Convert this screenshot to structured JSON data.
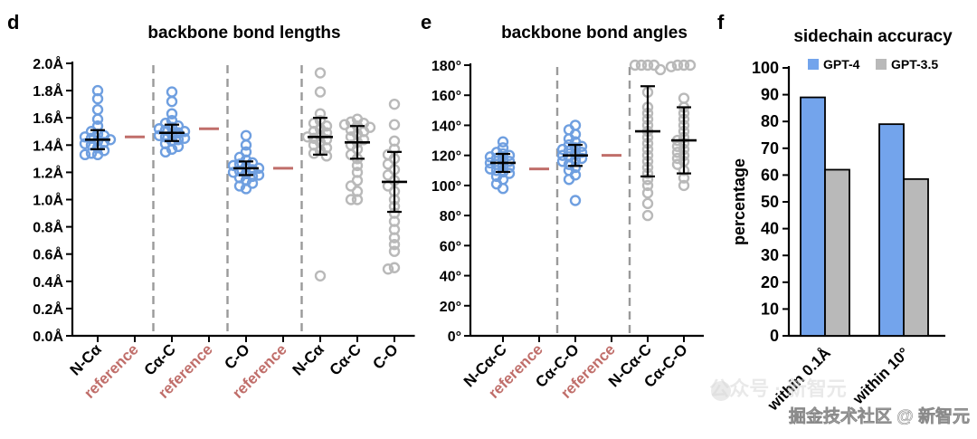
{
  "colors": {
    "blue": "#6f9fe0",
    "gray": "#b9b9b9",
    "reference": "#c06e6a",
    "errorbar": "#000000",
    "divider": "#9a9a9a",
    "bar_blue": "#73a4ec",
    "bar_gray": "#b9b9b9"
  },
  "watermark": {
    "text": "掘金技术社区 @ 新智元",
    "behind_text": "公众号 · 新智元"
  },
  "chart_data": [
    {
      "id": "d",
      "panel_label": "d",
      "type": "scatter",
      "title": "backbone bond lengths",
      "ylim": [
        0,
        2.0
      ],
      "yticks": [
        "0.0Å",
        "0.2Å",
        "0.4Å",
        "0.6Å",
        "0.8Å",
        "1.0Å",
        "1.2Å",
        "1.4Å",
        "1.6Å",
        "1.8Å",
        "2.0Å"
      ],
      "categories": [
        "N-Cα",
        "reference",
        "Cα-C",
        "reference",
        "C-O",
        "reference",
        "N-Cα",
        "Cα-C",
        "C-O"
      ],
      "category_kinds": [
        "blue",
        "ref",
        "blue",
        "ref",
        "blue",
        "ref",
        "gray",
        "gray",
        "gray"
      ],
      "dividers_after": [
        1,
        3,
        5
      ],
      "series": [
        {
          "category": "N-Cα",
          "kind": "blue",
          "mean": 1.44,
          "sd_low": 1.37,
          "sd_high": 1.51,
          "points": [
            1.8,
            1.74,
            1.66,
            1.59,
            1.54,
            1.5,
            1.48,
            1.47,
            1.46,
            1.45,
            1.44,
            1.43,
            1.42,
            1.41,
            1.4,
            1.38,
            1.36,
            1.34,
            1.33,
            1.33
          ]
        },
        {
          "category": "reference",
          "kind": "ref",
          "value": 1.46
        },
        {
          "category": "Cα-C",
          "kind": "blue",
          "mean": 1.49,
          "sd_low": 1.43,
          "sd_high": 1.55,
          "points": [
            1.79,
            1.72,
            1.63,
            1.58,
            1.56,
            1.54,
            1.53,
            1.52,
            1.51,
            1.5,
            1.49,
            1.48,
            1.47,
            1.46,
            1.45,
            1.44,
            1.43,
            1.41,
            1.39,
            1.37,
            1.35
          ]
        },
        {
          "category": "reference",
          "kind": "ref",
          "value": 1.52
        },
        {
          "category": "C-O",
          "kind": "blue",
          "mean": 1.23,
          "sd_low": 1.18,
          "sd_high": 1.28,
          "points": [
            1.47,
            1.4,
            1.35,
            1.31,
            1.29,
            1.27,
            1.26,
            1.25,
            1.24,
            1.23,
            1.22,
            1.21,
            1.2,
            1.19,
            1.18,
            1.17,
            1.16,
            1.14,
            1.12,
            1.1,
            1.08
          ]
        },
        {
          "category": "reference",
          "kind": "ref",
          "value": 1.23
        },
        {
          "category": "N-Cα",
          "kind": "gray",
          "mean": 1.46,
          "sd_low": 1.33,
          "sd_high": 1.6,
          "points": [
            1.93,
            1.79,
            1.63,
            1.58,
            1.56,
            1.54,
            1.52,
            1.5,
            1.49,
            1.47,
            1.46,
            1.45,
            1.44,
            1.42,
            1.4,
            1.38,
            1.36,
            1.34,
            1.32,
            0.44
          ]
        },
        {
          "category": "Cα-C",
          "kind": "gray",
          "mean": 1.42,
          "sd_low": 1.3,
          "sd_high": 1.54,
          "points": [
            1.59,
            1.57,
            1.56,
            1.55,
            1.54,
            1.53,
            1.51,
            1.5,
            1.48,
            1.46,
            1.44,
            1.42,
            1.4,
            1.37,
            1.33,
            1.3,
            1.25,
            1.2,
            1.14,
            1.1,
            1.06,
            1.0,
            1.0
          ]
        },
        {
          "category": "C-O",
          "kind": "gray",
          "mean": 1.13,
          "sd_low": 0.91,
          "sd_high": 1.35,
          "points": [
            1.7,
            1.55,
            1.43,
            1.37,
            1.33,
            1.3,
            1.26,
            1.22,
            1.18,
            1.14,
            1.1,
            1.06,
            1.0,
            0.95,
            0.9,
            0.84,
            0.78,
            0.72,
            0.67,
            0.62,
            0.5,
            0.49
          ]
        }
      ]
    },
    {
      "id": "e",
      "panel_label": "e",
      "type": "scatter",
      "title": "backbone bond angles",
      "ylim": [
        0,
        180
      ],
      "yticks": [
        "0°",
        "20°",
        "40°",
        "60°",
        "80°",
        "100°",
        "120°",
        "140°",
        "160°",
        "180°"
      ],
      "categories": [
        "N-Cα-C",
        "reference",
        "Cα-C-O",
        "reference",
        "N-Cα-C",
        "Cα-C-O"
      ],
      "category_kinds": [
        "blue",
        "ref",
        "blue",
        "ref",
        "gray",
        "gray"
      ],
      "dividers_after": [
        1,
        3
      ],
      "series": [
        {
          "category": "N-Cα-C",
          "kind": "blue",
          "mean": 115,
          "sd_low": 109,
          "sd_high": 121,
          "points": [
            129,
            125,
            122,
            121,
            120,
            119,
            118,
            117,
            116,
            115,
            114,
            113,
            112,
            111,
            110,
            109,
            108,
            106,
            104,
            101,
            98
          ]
        },
        {
          "category": "reference",
          "kind": "ref",
          "value": 111
        },
        {
          "category": "Cα-C-O",
          "kind": "blue",
          "mean": 120,
          "sd_low": 113,
          "sd_high": 127,
          "points": [
            140,
            137,
            134,
            131,
            129,
            127,
            126,
            125,
            124,
            123,
            122,
            121,
            120,
            119,
            118,
            117,
            116,
            114,
            112,
            110,
            107,
            104,
            90
          ]
        },
        {
          "category": "reference",
          "kind": "ref",
          "value": 120
        },
        {
          "category": "N-Cα-C",
          "kind": "gray",
          "mean": 136,
          "sd_low": 106,
          "sd_high": 166,
          "points": [
            180,
            180,
            180,
            180,
            177,
            162,
            152,
            148,
            144,
            140,
            136,
            132,
            128,
            124,
            120,
            116,
            112,
            108,
            104,
            100,
            95,
            88,
            80
          ]
        },
        {
          "category": "Cα-C-O",
          "kind": "gray",
          "mean": 130,
          "sd_low": 108,
          "sd_high": 152,
          "points": [
            180,
            180,
            180,
            179,
            158,
            152,
            148,
            144,
            140,
            136,
            132,
            130,
            128,
            126,
            124,
            122,
            120,
            118,
            116,
            114,
            110,
            105,
            100
          ]
        }
      ]
    },
    {
      "id": "f",
      "panel_label": "f",
      "type": "bar",
      "title": "sidechain accuracy",
      "ylabel": "percentage",
      "ylim": [
        0,
        100
      ],
      "yticks": [
        "0",
        "10",
        "20",
        "30",
        "40",
        "50",
        "60",
        "70",
        "80",
        "90",
        "100"
      ],
      "categories": [
        "within 0.1Å",
        "within 10°"
      ],
      "legend": [
        "GPT-4",
        "GPT-3.5"
      ],
      "series": [
        {
          "name": "GPT-4",
          "values": [
            89,
            79
          ]
        },
        {
          "name": "GPT-3.5",
          "values": [
            62,
            58.5
          ]
        }
      ]
    }
  ]
}
